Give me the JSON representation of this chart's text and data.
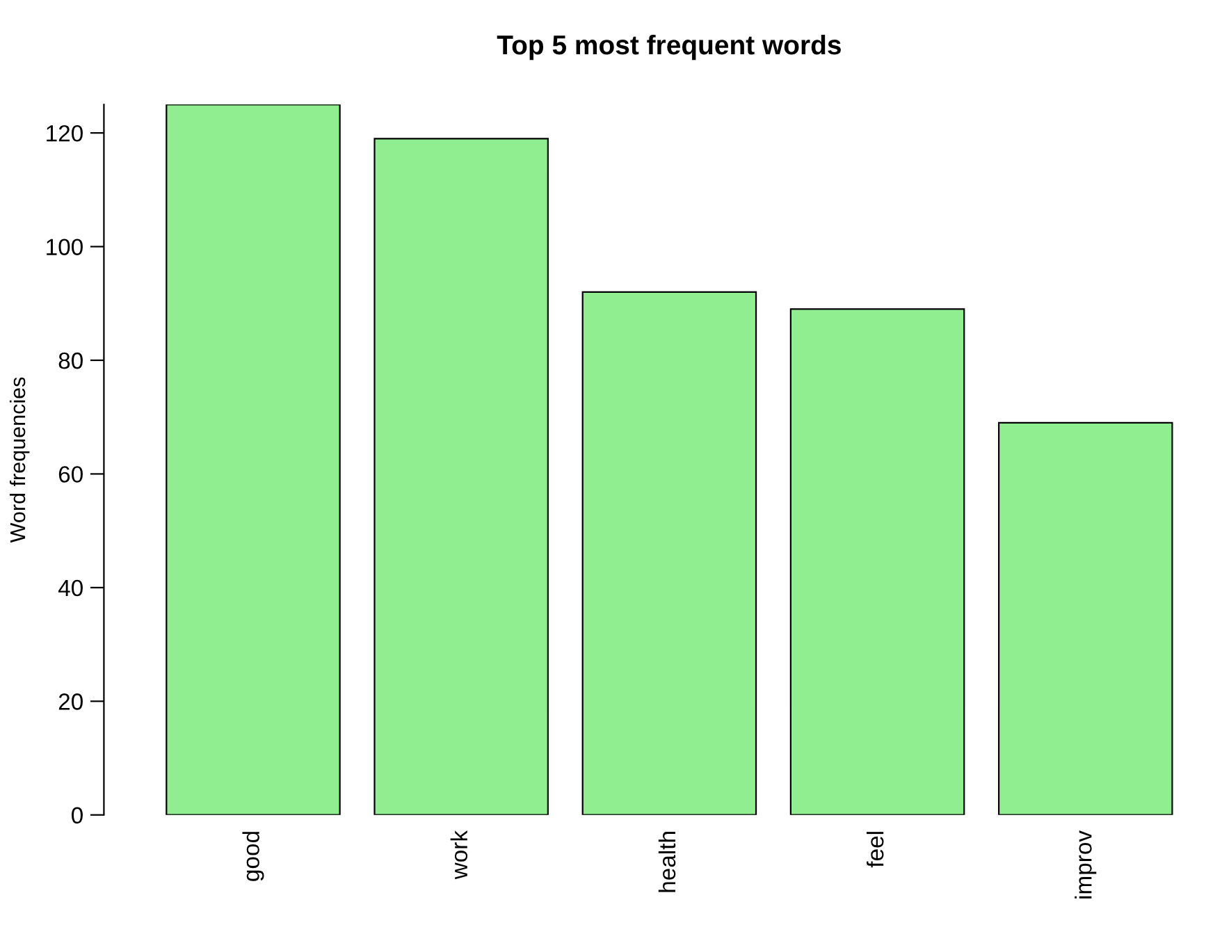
{
  "chart_data": {
    "type": "bar",
    "title": "Top 5 most frequent words",
    "ylabel": "Word frequencies",
    "categories": [
      "good",
      "work",
      "health",
      "feel",
      "improv"
    ],
    "values": [
      125,
      119,
      92,
      89,
      69
    ],
    "color": "#90ee90",
    "ylim": [
      0,
      125
    ],
    "yticks": [
      0,
      20,
      40,
      60,
      80,
      100,
      120
    ],
    "grid": false
  }
}
